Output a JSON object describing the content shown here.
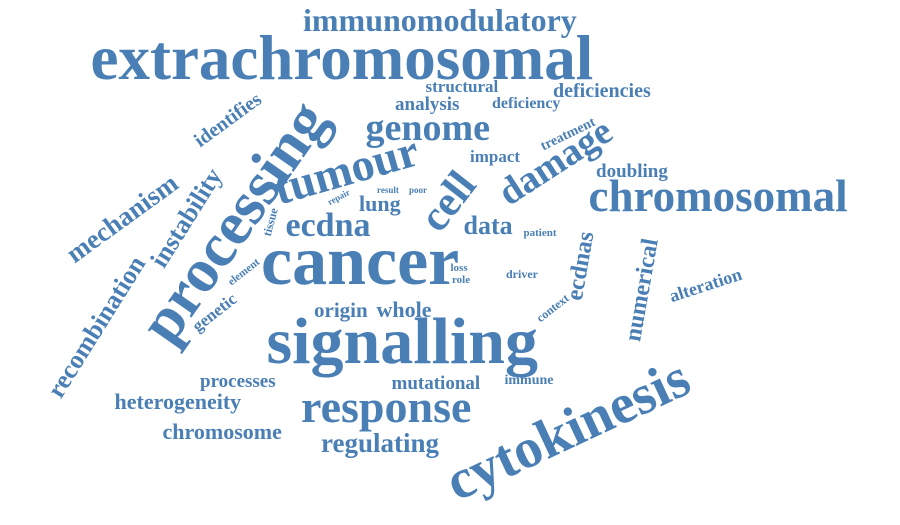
{
  "colors": {
    "word": "#4a7fb5",
    "background": "#ffffff"
  },
  "words": [
    "immunomodulatory",
    "extrachromosomal",
    "structural",
    "deficiencies",
    "identifies",
    "analysis",
    "deficiency",
    "genome",
    "treatment",
    "damage",
    "processing",
    "mechanism",
    "instability",
    "tumour",
    "impact",
    "doubling",
    "repair",
    "result",
    "poor",
    "cell",
    "chromosomal",
    "lung",
    "ecdna",
    "tissue",
    "data",
    "patient",
    "ecdnas",
    "recombination",
    "element",
    "cancer",
    "loss",
    "role",
    "driver",
    "genetic",
    "numerical",
    "alteration",
    "origin",
    "whole",
    "context",
    "signalling",
    "processes",
    "mutational",
    "immune",
    "heterogeneity",
    "response",
    "cytokinesis",
    "chromosome",
    "regulating"
  ]
}
